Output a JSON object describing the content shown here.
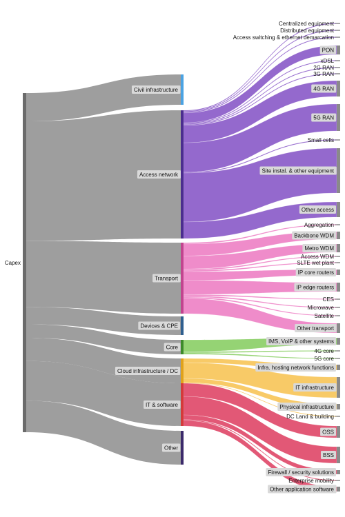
{
  "source": {
    "label": "Capex"
  },
  "colors": {
    "flow_gray": "#9e9e9e",
    "source_bar": "#6b6b6b",
    "label_box": "#d9d9d9",
    "access": "#8b5cc9",
    "transport": "#ee82c6",
    "core": "#8ccf68",
    "cloud": "#f7c65a",
    "it": "#e04a6a"
  },
  "categories": [
    {
      "id": "civil",
      "label": "Civil infrastructure",
      "bar_color": "#4ba3e3"
    },
    {
      "id": "access",
      "label": "Access network",
      "bar_color": "#4b2d8f"
    },
    {
      "id": "transport",
      "label": "Transport",
      "bar_color": "#c2448f"
    },
    {
      "id": "devices",
      "label": "Devices & CPE",
      "bar_color": "#2f5f8f"
    },
    {
      "id": "core",
      "label": "Core",
      "bar_color": "#3d8a2a"
    },
    {
      "id": "cloud",
      "label": "Cloud infrastructure / DC",
      "bar_color": "#e0a21b"
    },
    {
      "id": "it",
      "label": "IT & software",
      "bar_color": "#d43a3a"
    },
    {
      "id": "other",
      "label": "Other",
      "bar_color": "#3b2a6b"
    }
  ],
  "leaves": [
    {
      "label": "Centralized equipment",
      "parent": "access",
      "boxed": false
    },
    {
      "label": "Distributed equipment",
      "parent": "access",
      "boxed": false
    },
    {
      "label": "Access switching & ethernet demarcation",
      "parent": "access",
      "boxed": false
    },
    {
      "label": "PON",
      "parent": "access",
      "boxed": true
    },
    {
      "label": "xDSL",
      "parent": "access",
      "boxed": false
    },
    {
      "label": "2G RAN",
      "parent": "access",
      "boxed": false
    },
    {
      "label": "3G RAN",
      "parent": "access",
      "boxed": false
    },
    {
      "label": "4G RAN",
      "parent": "access",
      "boxed": true
    },
    {
      "label": "5G RAN",
      "parent": "access",
      "boxed": true
    },
    {
      "label": "Small cells",
      "parent": "access",
      "boxed": false
    },
    {
      "label": "Site instal. & other equipment",
      "parent": "access",
      "boxed": true
    },
    {
      "label": "Other access",
      "parent": "access",
      "boxed": true
    },
    {
      "label": "Aggregation",
      "parent": "transport",
      "boxed": false
    },
    {
      "label": "Backbone WDM",
      "parent": "transport",
      "boxed": true
    },
    {
      "label": "Metro WDM",
      "parent": "transport",
      "boxed": true
    },
    {
      "label": "Access WDM",
      "parent": "transport",
      "boxed": false
    },
    {
      "label": "SLTE wet plant",
      "parent": "transport",
      "boxed": false
    },
    {
      "label": "IP core routers",
      "parent": "transport",
      "boxed": true
    },
    {
      "label": "IP edge routers",
      "parent": "transport",
      "boxed": true
    },
    {
      "label": "CES",
      "parent": "transport",
      "boxed": false
    },
    {
      "label": "Microwave",
      "parent": "transport",
      "boxed": false
    },
    {
      "label": "Satellite",
      "parent": "transport",
      "boxed": false
    },
    {
      "label": "Other transport",
      "parent": "transport",
      "boxed": true
    },
    {
      "label": "IMS, VoIP & other systems",
      "parent": "core",
      "boxed": true
    },
    {
      "label": "4G core",
      "parent": "core",
      "boxed": false
    },
    {
      "label": "5G core",
      "parent": "core",
      "boxed": false
    },
    {
      "label": "Infra. hosting network functions",
      "parent": "cloud",
      "boxed": true
    },
    {
      "label": "IT infrastructure",
      "parent": "cloud",
      "boxed": true
    },
    {
      "label": "Physical infrastructure",
      "parent": "cloud",
      "boxed": true
    },
    {
      "label": "DC Land & building",
      "parent": "cloud",
      "boxed": false
    },
    {
      "label": "OSS",
      "parent": "it",
      "boxed": true
    },
    {
      "label": "BSS",
      "parent": "it",
      "boxed": true
    },
    {
      "label": "Firewall / security solutions",
      "parent": "it",
      "boxed": true
    },
    {
      "label": "Enterprise mobility",
      "parent": "it",
      "boxed": false
    },
    {
      "label": "Other application software",
      "parent": "it",
      "boxed": true
    }
  ]
}
